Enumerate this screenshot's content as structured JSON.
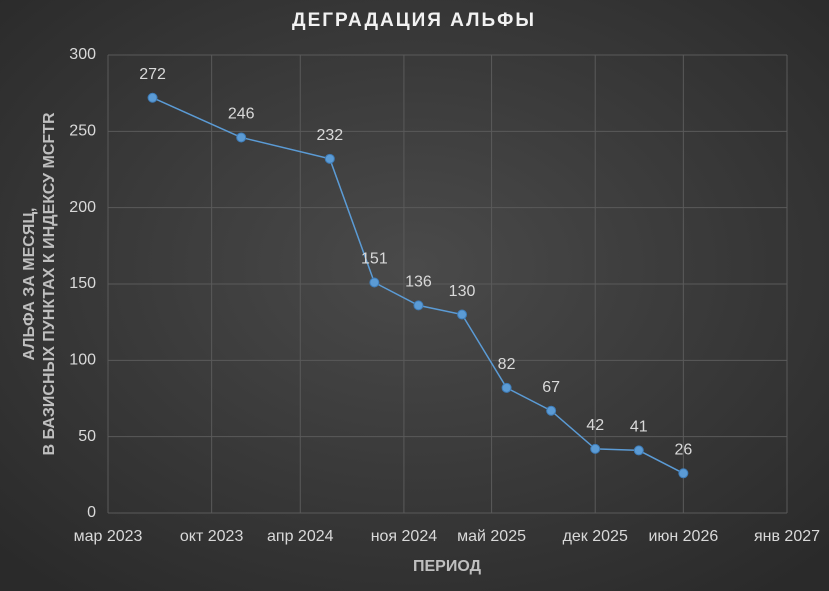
{
  "chart_data": {
    "type": "line",
    "title": "ДЕГРАДАЦИЯ АЛЬФЫ",
    "xlabel": "ПЕРИОД",
    "ylabel": [
      "АЛЬФА ЗА МЕСЯЦ,",
      "В БАЗИСНЫХ ПУНКТАХ К ИНДЕКСУ MCFTR"
    ],
    "x": [
      "2023-06",
      "2023-12",
      "2024-06",
      "2024-09",
      "2024-12",
      "2025-03",
      "2025-06",
      "2025-09",
      "2025-12",
      "2026-03",
      "2026-06"
    ],
    "series": [
      {
        "color": "#5b9bd5",
        "values": [
          272,
          246,
          232,
          151,
          136,
          130,
          82,
          67,
          42,
          41,
          26
        ]
      }
    ],
    "xlim": [
      "2023-03",
      "2027-01"
    ],
    "xticks": [
      {
        "value": "2023-03",
        "label": "мар 2023"
      },
      {
        "value": "2023-10",
        "label": "окт 2023"
      },
      {
        "value": "2024-04",
        "label": "апр 2024"
      },
      {
        "value": "2024-11",
        "label": "ноя 2024"
      },
      {
        "value": "2025-05",
        "label": "май 2025"
      },
      {
        "value": "2025-12",
        "label": "дек 2025"
      },
      {
        "value": "2026-06",
        "label": "июн 2026"
      },
      {
        "value": "2027-01",
        "label": "янв 2027"
      }
    ],
    "ylim": [
      0,
      300
    ],
    "yticks": [
      0,
      50,
      100,
      150,
      200,
      250,
      300
    ],
    "grid": true
  }
}
